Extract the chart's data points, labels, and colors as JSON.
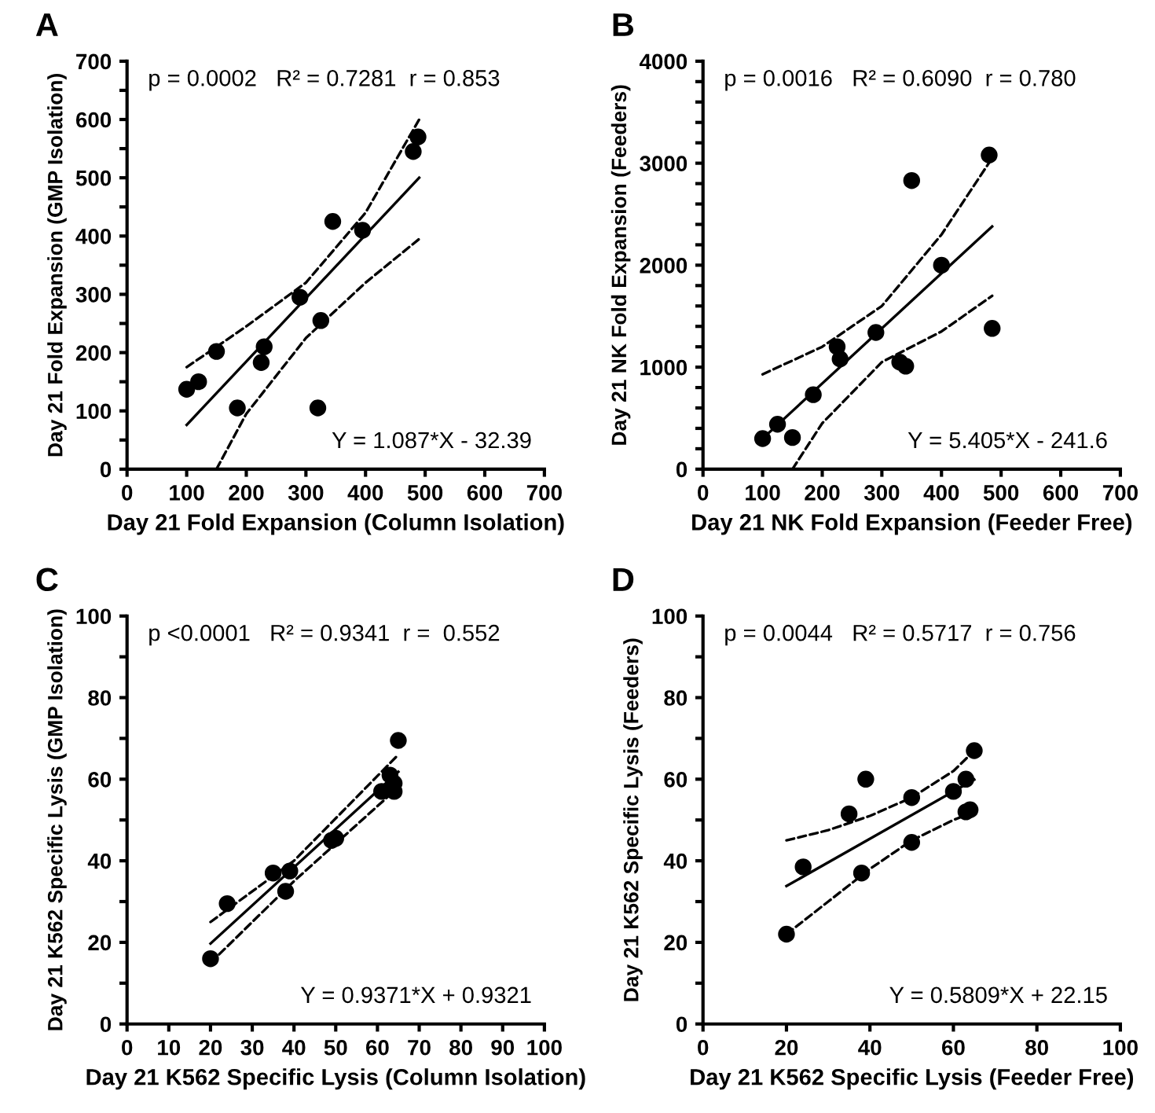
{
  "chart_data": [
    {
      "type": "scatter",
      "title": "A",
      "xlabel": "Day 21 Fold Expansion (Column Isolation)",
      "ylabel": "Day 21 Fold Expansion (GMP Isolation)",
      "xlim": [
        0,
        700
      ],
      "ylim": [
        0,
        700
      ],
      "xticks": [
        0,
        100,
        200,
        300,
        400,
        500,
        600,
        700
      ],
      "yticks": [
        0,
        {
          "value": 50,
          "label": null
        },
        100,
        {
          "value": 150,
          "label": null
        },
        200,
        {
          "value": 250,
          "label": null
        },
        300,
        {
          "value": 350,
          "label": null
        },
        400,
        {
          "value": 450,
          "label": null
        },
        500,
        {
          "value": 550,
          "label": null
        },
        600,
        {
          "value": 650,
          "label": null
        },
        700
      ],
      "grid": false,
      "annotations": [
        "p = 0.0002   R² = 0.7281  r = 0.853",
        "Y = 1.087*X - 32.39"
      ],
      "series": [
        {
          "marker": "circle",
          "color": "#000000",
          "x": [
            100,
            120,
            150,
            185,
            225,
            230,
            290,
            325,
            320,
            345,
            395,
            480,
            488
          ],
          "values": [
            137,
            150,
            202,
            105,
            183,
            210,
            295,
            255,
            105,
            425,
            410,
            545,
            570
          ]
        },
        {
          "type": "line",
          "color": "#000000",
          "line_style": "solid",
          "x": [
            100,
            490
          ],
          "values": [
            76,
            500
          ]
        },
        {
          "type": "line",
          "color": "#000000",
          "line_style": "dashed",
          "x": [
            100,
            200,
            300,
            400,
            490
          ],
          "values": [
            175,
            245,
            320,
            440,
            600
          ]
        },
        {
          "type": "line",
          "color": "#000000",
          "line_style": "dashed",
          "x": [
            150,
            200,
            300,
            400,
            490
          ],
          "values": [
            0,
            95,
            225,
            320,
            395
          ]
        }
      ]
    },
    {
      "type": "scatter",
      "title": "B",
      "xlabel": "Day 21 NK Fold Expansion (Feeder Free)",
      "ylabel": "Day 21 NK Fold Expansion (Feeders)",
      "xlim": [
        0,
        700
      ],
      "ylim": [
        0,
        4000
      ],
      "xticks": [
        0,
        100,
        200,
        300,
        400,
        500,
        600,
        700
      ],
      "yticks": [
        0,
        {
          "value": 200,
          "label": null
        },
        {
          "value": 400,
          "label": null
        },
        {
          "value": 600,
          "label": null
        },
        {
          "value": 800,
          "label": null
        },
        1000,
        {
          "value": 1200,
          "label": null
        },
        {
          "value": 1400,
          "label": null
        },
        {
          "value": 1600,
          "label": null
        },
        {
          "value": 1800,
          "label": null
        },
        2000,
        {
          "value": 2200,
          "label": null
        },
        {
          "value": 2400,
          "label": null
        },
        {
          "value": 2600,
          "label": null
        },
        {
          "value": 2800,
          "label": null
        },
        3000,
        {
          "value": 3200,
          "label": null
        },
        {
          "value": 3400,
          "label": null
        },
        {
          "value": 3600,
          "label": null
        },
        {
          "value": 3800,
          "label": null
        },
        4000
      ],
      "grid": false,
      "annotations": [
        "p = 0.0016   R² = 0.6090  r = 0.780",
        "Y = 5.405*X - 241.6"
      ],
      "series": [
        {
          "marker": "circle",
          "color": "#000000",
          "x": [
            100,
            125,
            150,
            185,
            225,
            230,
            290,
            330,
            340,
            350,
            400,
            480,
            485
          ],
          "values": [
            300,
            440,
            310,
            730,
            1200,
            1080,
            1340,
            1050,
            1010,
            2830,
            2000,
            3080,
            1380
          ]
        },
        {
          "type": "line",
          "color": "#000000",
          "line_style": "solid",
          "x": [
            100,
            485
          ],
          "values": [
            300,
            2380
          ]
        },
        {
          "type": "line",
          "color": "#000000",
          "line_style": "dashed",
          "x": [
            100,
            200,
            300,
            400,
            485
          ],
          "values": [
            930,
            1200,
            1600,
            2300,
            3050
          ]
        },
        {
          "type": "line",
          "color": "#000000",
          "line_style": "dashed",
          "x": [
            150,
            200,
            300,
            400,
            485
          ],
          "values": [
            0,
            450,
            1050,
            1350,
            1700
          ]
        }
      ]
    },
    {
      "type": "scatter",
      "title": "C",
      "xlabel": "Day 21 K562 Specific Lysis (Column Isolation)",
      "ylabel": "Day 21 K562 Specific Lysis (GMP Isolation)",
      "xlim": [
        0,
        100
      ],
      "ylim": [
        0,
        100
      ],
      "xticks": [
        0,
        10,
        20,
        30,
        40,
        50,
        60,
        70,
        80,
        90,
        100
      ],
      "yticks": [
        0,
        {
          "value": 10,
          "label": null
        },
        20,
        {
          "value": 30,
          "label": null
        },
        40,
        {
          "value": 50,
          "label": null
        },
        60,
        {
          "value": 70,
          "label": null
        },
        80,
        {
          "value": 90,
          "label": null
        },
        100
      ],
      "grid": false,
      "annotations": [
        "p <0.0001   R² = 0.9341  r =  0.552",
        "Y = 0.9371*X + 0.9321"
      ],
      "series": [
        {
          "marker": "circle",
          "color": "#000000",
          "x": [
            20,
            24,
            35,
            38,
            39,
            49,
            50,
            61,
            63,
            64,
            64,
            65
          ],
          "values": [
            16,
            29.5,
            37,
            32.5,
            37.5,
            45,
            45.5,
            57,
            61,
            59,
            57,
            69.5
          ]
        },
        {
          "type": "line",
          "color": "#000000",
          "line_style": "solid",
          "x": [
            20,
            65
          ],
          "values": [
            19.7,
            61.8
          ]
        },
        {
          "type": "line",
          "color": "#000000",
          "line_style": "dashed",
          "x": [
            20,
            40,
            65
          ],
          "values": [
            25,
            40,
            66
          ]
        },
        {
          "type": "line",
          "color": "#000000",
          "line_style": "dashed",
          "x": [
            20,
            40,
            65
          ],
          "values": [
            15,
            35,
            58
          ]
        }
      ]
    },
    {
      "type": "scatter",
      "title": "D",
      "xlabel": "Day 21 K562 Specific Lysis (Feeder Free)",
      "ylabel": "Day 21 K562 Specific Lysis (Feeders)",
      "xlim": [
        0,
        100
      ],
      "ylim": [
        0,
        100
      ],
      "xticks": [
        0,
        20,
        40,
        60,
        80,
        100
      ],
      "yticks": [
        0,
        {
          "value": 10,
          "label": null
        },
        20,
        {
          "value": 30,
          "label": null
        },
        40,
        {
          "value": 50,
          "label": null
        },
        60,
        {
          "value": 70,
          "label": null
        },
        80,
        {
          "value": 90,
          "label": null
        },
        100
      ],
      "grid": false,
      "annotations": [
        "p = 0.0044   R² = 0.5717  r = 0.756",
        "Y = 0.5809*X + 22.15"
      ],
      "series": [
        {
          "marker": "circle",
          "color": "#000000",
          "x": [
            20,
            24,
            35,
            38,
            39,
            50,
            50,
            60,
            63,
            63,
            64,
            65
          ],
          "values": [
            22,
            38.5,
            51.5,
            37,
            60,
            55.5,
            44.5,
            57,
            60,
            52,
            52.5,
            67
          ]
        },
        {
          "type": "line",
          "color": "#000000",
          "line_style": "solid",
          "x": [
            20,
            65
          ],
          "values": [
            33.8,
            59.9
          ]
        },
        {
          "type": "line",
          "color": "#000000",
          "line_style": "dashed",
          "x": [
            20,
            30,
            40,
            50,
            60,
            65
          ],
          "values": [
            45,
            47.5,
            51,
            55.5,
            62,
            67
          ]
        },
        {
          "type": "line",
          "color": "#000000",
          "line_style": "dashed",
          "x": [
            20,
            30,
            40,
            50,
            60,
            65
          ],
          "values": [
            22,
            30,
            38,
            45,
            50,
            52
          ]
        }
      ]
    }
  ]
}
